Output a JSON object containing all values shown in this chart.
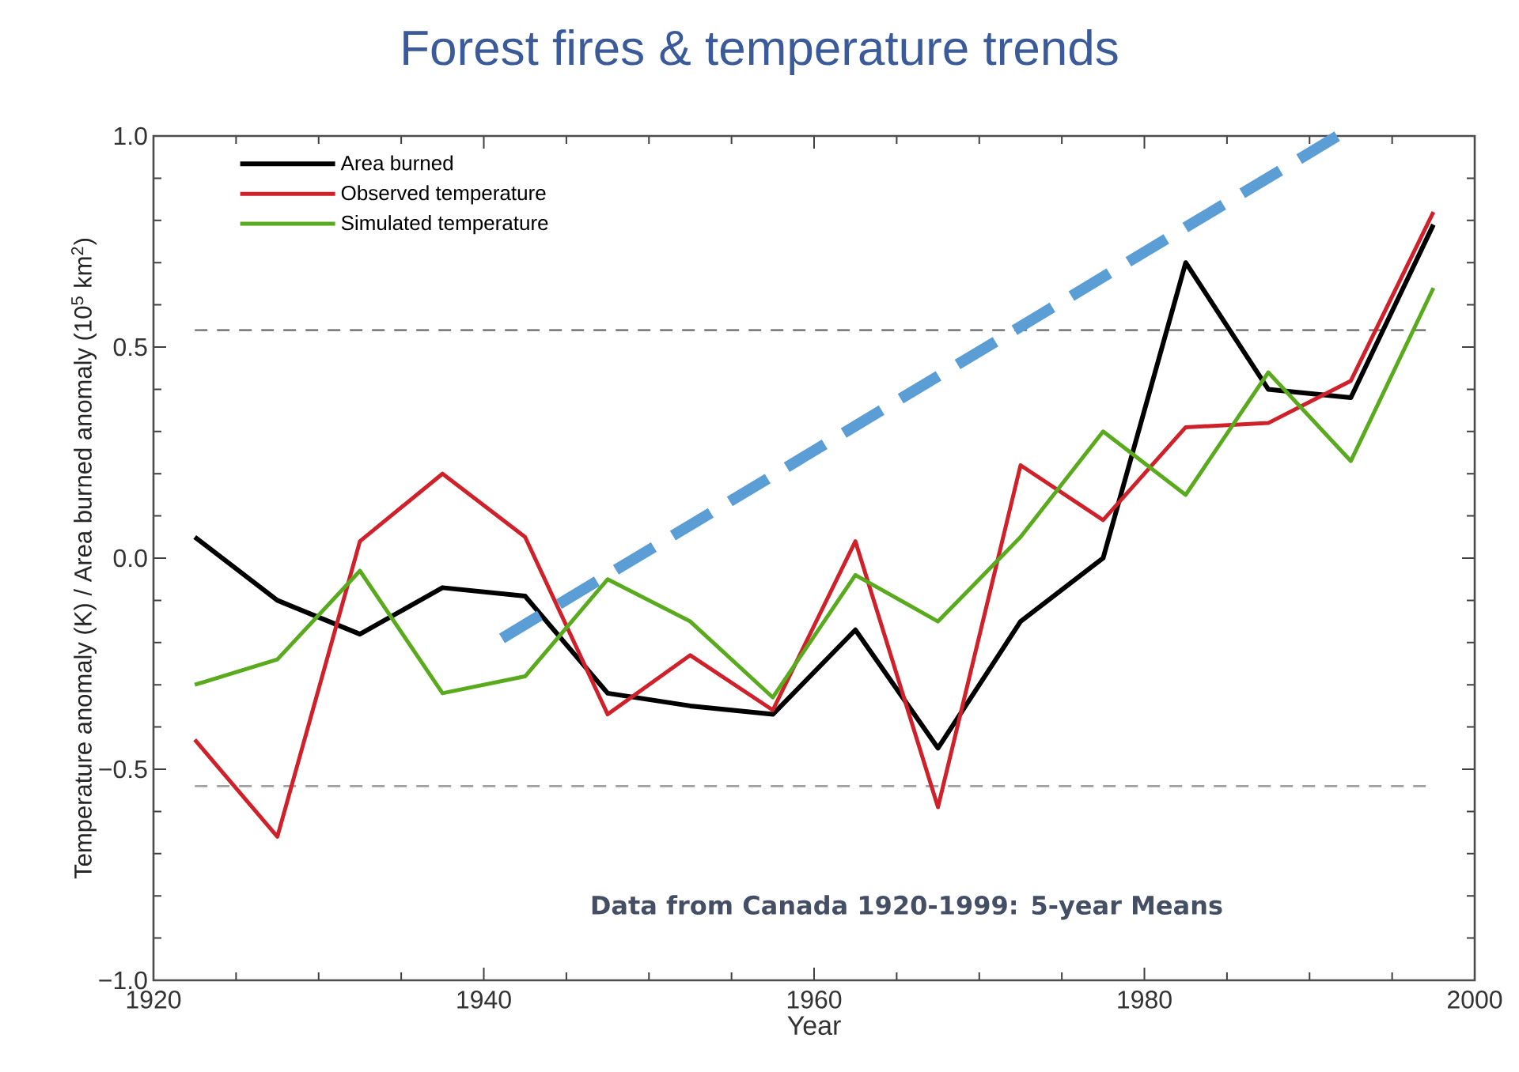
{
  "chart_data": {
    "type": "line",
    "title": "Forest fires & temperature trends",
    "xlabel": "Year",
    "ylabel": "Temperature anomaly (K) / Area burned anomaly (10$^{5}$ km$^{2}$)",
    "annotations": [
      "Data from Canada 1920-1999: 5-year Means"
    ],
    "x": [
      1922.5,
      1927.5,
      1932.5,
      1937.5,
      1942.5,
      1947.5,
      1952.5,
      1957.5,
      1962.5,
      1967.5,
      1972.5,
      1977.5,
      1982.5,
      1987.5,
      1992.5,
      1997.5
    ],
    "series": [
      {
        "name": "Area burned",
        "color": "#000000",
        "values": [
          0.05,
          -0.1,
          -0.18,
          -0.07,
          -0.09,
          -0.32,
          -0.35,
          -0.37,
          -0.17,
          -0.45,
          -0.15,
          0.0,
          0.7,
          0.4,
          0.38,
          0.79
        ]
      },
      {
        "name": "Observed temperature",
        "color": "#d0202a",
        "values": [
          -0.43,
          -0.66,
          0.04,
          0.2,
          0.05,
          -0.37,
          -0.23,
          -0.36,
          0.04,
          -0.59,
          0.22,
          0.09,
          0.31,
          0.32,
          0.42,
          0.82
        ]
      },
      {
        "name": "Simulated temperature",
        "color": "#5aaa1e",
        "values": [
          -0.3,
          -0.24,
          -0.03,
          -0.32,
          -0.28,
          -0.05,
          -0.15,
          -0.33,
          -0.04,
          -0.15,
          0.05,
          0.3,
          0.15,
          0.44,
          0.23,
          0.64
        ]
      },
      {
        "type": "line",
        "color": "#5b9dd5",
        "line_style": "dashed",
        "x": [
          1941.1,
          1991.7
        ],
        "values": [
          -0.19,
          1.0
        ]
      }
    ],
    "xlim": [
      1920,
      2000
    ],
    "ylim": [
      -1.0,
      1.0
    ],
    "xticks": [
      1920,
      1940,
      1960,
      1980,
      2000
    ],
    "yticks": [
      {
        "value": -1.0,
        "label": "−1.0"
      },
      {
        "value": -0.5,
        "label": "−0.5"
      },
      {
        "value": 0.0,
        "label": "0.0"
      },
      {
        "value": 0.5,
        "label": "0.5"
      },
      {
        "value": 1.0,
        "label": "1.0"
      }
    ],
    "ref_lines": [
      {
        "axis": "y",
        "value": 0.54,
        "color": "#808080",
        "line_style": "dashed"
      },
      {
        "axis": "y",
        "value": -0.54,
        "color": "#a0a0a0",
        "line_style": "dashed"
      }
    ],
    "legend": "top left"
  }
}
